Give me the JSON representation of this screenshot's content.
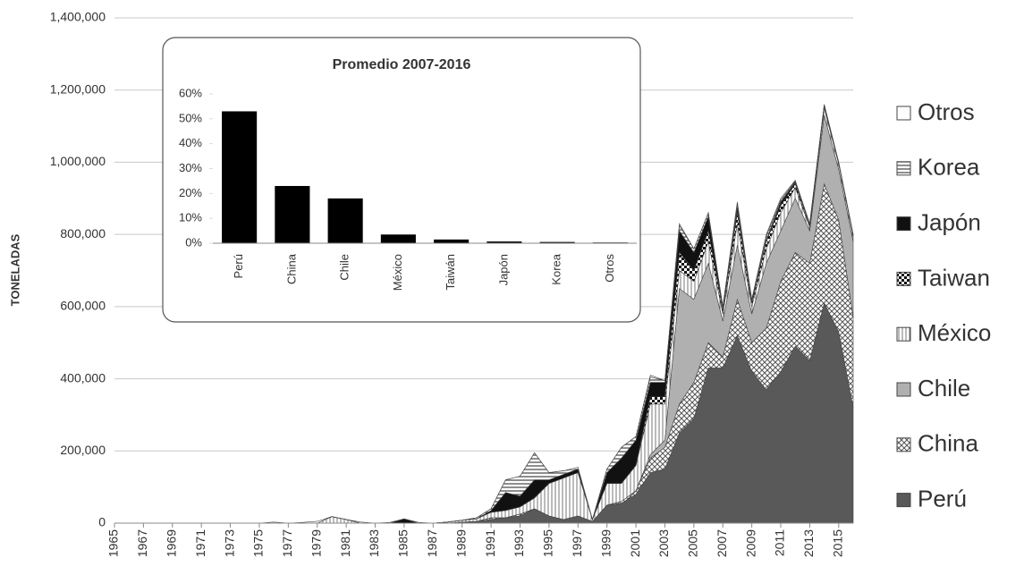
{
  "chart_data": [
    {
      "type": "area",
      "ylabel": "TONELADAS",
      "x": [
        1965,
        1966,
        1967,
        1968,
        1969,
        1970,
        1971,
        1972,
        1973,
        1974,
        1975,
        1976,
        1977,
        1978,
        1979,
        1980,
        1981,
        1982,
        1983,
        1984,
        1985,
        1986,
        1987,
        1988,
        1989,
        1990,
        1991,
        1992,
        1993,
        1994,
        1995,
        1996,
        1997,
        1998,
        1999,
        2000,
        2001,
        2002,
        2003,
        2004,
        2005,
        2006,
        2007,
        2008,
        2009,
        2010,
        2011,
        2012,
        2013,
        2014,
        2015,
        2016
      ],
      "xlim": [
        1965,
        2016
      ],
      "xticks": [
        1965,
        1967,
        1969,
        1971,
        1973,
        1975,
        1977,
        1979,
        1981,
        1983,
        1985,
        1987,
        1989,
        1991,
        1993,
        1995,
        1997,
        1999,
        2001,
        2003,
        2005,
        2007,
        2009,
        2011,
        2013,
        2015
      ],
      "ylim": [
        0,
        1400000
      ],
      "yticks": [
        0,
        {
          "value": 200000,
          "label": "200,000"
        },
        {
          "value": 400000,
          "label": "400,000"
        },
        {
          "value": 600000,
          "label": "600,000"
        },
        {
          "value": 800000,
          "label": "800,000"
        },
        {
          "value": 1000000,
          "label": "1,000,000"
        },
        {
          "value": 1200000,
          "label": "1,200,000"
        },
        {
          "value": 1400000,
          "label": "1,400,000"
        }
      ],
      "grid": true,
      "legend": "right",
      "series": [
        {
          "name": "Perú",
          "color": "#595959",
          "pattern": "solid",
          "values": [
            0,
            0,
            0,
            0,
            0,
            0,
            0,
            0,
            0,
            0,
            0,
            0,
            0,
            0,
            0,
            0,
            0,
            0,
            0,
            0,
            0,
            0,
            0,
            0,
            3000,
            5000,
            10000,
            15000,
            20000,
            40000,
            20000,
            10000,
            20000,
            5000,
            50000,
            55000,
            80000,
            140000,
            150000,
            250000,
            290000,
            430000,
            430000,
            520000,
            420000,
            370000,
            420000,
            490000,
            450000,
            610000,
            530000,
            320000
          ]
        },
        {
          "name": "China",
          "color": "#6e6e6e",
          "pattern": "crosshatch",
          "values": [
            0,
            0,
            0,
            0,
            0,
            0,
            0,
            0,
            0,
            0,
            0,
            0,
            0,
            0,
            0,
            0,
            0,
            0,
            0,
            0,
            0,
            0,
            0,
            0,
            0,
            0,
            5000,
            0,
            5000,
            0,
            0,
            0,
            0,
            0,
            0,
            5000,
            10000,
            40000,
            60000,
            80000,
            100000,
            70000,
            30000,
            100000,
            80000,
            170000,
            250000,
            260000,
            270000,
            330000,
            310000,
            250000
          ]
        },
        {
          "name": "Chile",
          "color": "#b0b0b0",
          "pattern": "solid",
          "values": [
            0,
            0,
            0,
            0,
            0,
            0,
            0,
            0,
            0,
            0,
            0,
            0,
            0,
            0,
            0,
            0,
            0,
            0,
            0,
            0,
            0,
            0,
            0,
            0,
            0,
            0,
            0,
            0,
            0,
            0,
            0,
            0,
            0,
            0,
            0,
            0,
            0,
            10000,
            20000,
            320000,
            230000,
            220000,
            100000,
            150000,
            80000,
            180000,
            140000,
            150000,
            90000,
            190000,
            140000,
            210000
          ]
        },
        {
          "name": "México",
          "color": "#8a8a8a",
          "pattern": "vertical",
          "values": [
            0,
            0,
            0,
            0,
            0,
            0,
            0,
            0,
            0,
            0,
            0,
            0,
            0,
            0,
            0,
            18000,
            10000,
            0,
            0,
            0,
            0,
            0,
            0,
            3000,
            5000,
            7000,
            15000,
            20000,
            20000,
            30000,
            90000,
            115000,
            120000,
            5000,
            60000,
            50000,
            70000,
            140000,
            100000,
            50000,
            50000,
            60000,
            20000,
            60000,
            20000,
            40000,
            50000,
            30000,
            10000,
            20000,
            15000,
            15000
          ]
        },
        {
          "name": "Taiwan",
          "color": "#222222",
          "pattern": "checker",
          "values": [
            0,
            0,
            0,
            0,
            0,
            0,
            0,
            0,
            0,
            0,
            0,
            0,
            0,
            0,
            0,
            0,
            0,
            0,
            0,
            0,
            0,
            0,
            0,
            0,
            0,
            0,
            0,
            0,
            0,
            0,
            0,
            0,
            0,
            0,
            0,
            0,
            0,
            20000,
            20000,
            50000,
            30000,
            30000,
            10000,
            30000,
            10000,
            20000,
            20000,
            10000,
            5000,
            5000,
            3000,
            3000
          ]
        },
        {
          "name": "Japón",
          "color": "#111111",
          "pattern": "solid",
          "values": [
            0,
            0,
            0,
            0,
            0,
            0,
            0,
            0,
            0,
            0,
            0,
            0,
            0,
            0,
            0,
            0,
            0,
            0,
            0,
            0,
            12000,
            0,
            0,
            0,
            0,
            0,
            5000,
            50000,
            30000,
            50000,
            10000,
            10000,
            10000,
            0,
            30000,
            70000,
            70000,
            40000,
            40000,
            60000,
            50000,
            40000,
            5000,
            15000,
            5000,
            5000,
            10000,
            5000,
            3000,
            3000,
            0,
            0
          ]
        },
        {
          "name": "Korea",
          "color": "#555555",
          "pattern": "horizontal",
          "values": [
            0,
            0,
            0,
            0,
            0,
            0,
            0,
            0,
            0,
            0,
            0,
            0,
            0,
            0,
            0,
            0,
            0,
            0,
            0,
            0,
            0,
            0,
            0,
            0,
            0,
            3000,
            5000,
            35000,
            55000,
            75000,
            20000,
            10000,
            0,
            0,
            10000,
            30000,
            10000,
            15000,
            5000,
            15000,
            10000,
            10000,
            5000,
            10000,
            5000,
            10000,
            5000,
            3000,
            2000,
            2000,
            2000,
            2000
          ]
        },
        {
          "name": "Otros",
          "color": "#ffffff",
          "pattern": "solid",
          "values": [
            0,
            0,
            0,
            0,
            0,
            0,
            0,
            0,
            0,
            0,
            0,
            3000,
            0,
            2000,
            5000,
            0,
            0,
            3000,
            0,
            2000,
            0,
            2000,
            0,
            0,
            0,
            0,
            0,
            0,
            0,
            0,
            0,
            0,
            5000,
            0,
            0,
            0,
            0,
            5000,
            0,
            5000,
            0,
            0,
            0,
            5000,
            0,
            5000,
            5000,
            2000,
            0,
            0,
            0,
            0
          ]
        }
      ]
    },
    {
      "type": "bar",
      "title": "Promedio 2007-2016",
      "categories": [
        "Perú",
        "China",
        "Chile",
        "México",
        "Taiwán",
        "Japón",
        "Korea",
        "Otros"
      ],
      "values": [
        53,
        23,
        18,
        3.5,
        1.5,
        0.7,
        0.5,
        0.3
      ],
      "color": "#000000",
      "ylim": [
        0,
        60
      ],
      "yticks": [
        {
          "value": 0,
          "label": "0%"
        },
        {
          "value": 10,
          "label": "10%"
        },
        {
          "value": 20,
          "label": "20%"
        },
        {
          "value": 30,
          "label": "30%"
        },
        {
          "value": 40,
          "label": "40%"
        },
        {
          "value": 50,
          "label": "50%"
        },
        {
          "value": 60,
          "label": "60%"
        }
      ],
      "grid": false
    }
  ]
}
